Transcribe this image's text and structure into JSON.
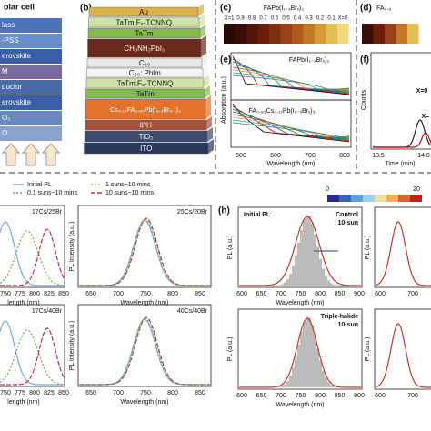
{
  "panel_a": {
    "title": "olar cell",
    "layers": [
      "lass",
      "-PSS",
      "erovskite",
      "M",
      "ductor",
      "erovskite",
      "O₂",
      "O"
    ]
  },
  "panel_b": {
    "label": "(b)",
    "layers": [
      "Au",
      "TaTm:F₆-TCNNQ",
      "TaTm",
      "CH₃NH₃PbI₃",
      "C₆₀",
      "C₆₀: Phlm",
      "TaTm:F₆-TCNNQ",
      "TaTm",
      "Cs₀.₁₅FA₀.₈₅Pb(I₀.₃Br₀.₇)₃",
      "IPH",
      "TiO₂",
      "ITO"
    ]
  },
  "panel_c": {
    "label": "(c)",
    "title": "FAPb(I₁₋ₓBrₓ)₃",
    "x_labels": [
      "X=1",
      "0.9",
      "0.8",
      "0.7",
      "0.6",
      "0.5",
      "0.4",
      "0.3",
      "0.2",
      "0.1",
      "X=0"
    ]
  },
  "panel_d": {
    "label": "(d)",
    "title": "FA₀.₈"
  },
  "panel_e": {
    "label": "(e)",
    "top_title": "FAPb(I₁₋ₓBrₓ)₃",
    "bottom_title": "FA₀.₈₃Cs₀.₁₇Pb(I₁₋ₓBrₓ)₃",
    "y_label": "Absorption (a.u.)",
    "x_label": "Wavelength (nm)",
    "x_ticks": [
      "500",
      "600",
      "700",
      "800"
    ]
  },
  "panel_f": {
    "label": "(f)",
    "y_label": "Counts",
    "x_label": "Time (min)",
    "x_ticks": [
      "13.5",
      "14.0"
    ],
    "annotations": [
      "X=0",
      "X="
    ]
  },
  "panel_g": {
    "legend": [
      "Initial PL",
      "1 suns~10 mins",
      "0.1 suns~10 mins",
      "10 suns~10 mins"
    ],
    "left_titles": [
      "17Cs/25Br",
      "17Cs/40Br"
    ],
    "right_titles": [
      "25Cs/20Br",
      "40Cs/40Br"
    ],
    "left_x_ticks": [
      "750",
      "775",
      "800",
      "825",
      "850"
    ],
    "right_x_ticks": [
      "650",
      "700",
      "750",
      "800",
      "850"
    ],
    "y_label": "PL Intensity (a.u.)",
    "x_label": "Wavelength (nm)",
    "x_label_cut": "length (nm)"
  },
  "panel_h": {
    "label": "(h)",
    "colorbar_ticks": [
      "0",
      "20"
    ],
    "initial": "Initial PL",
    "control": [
      "Control",
      "10-sun"
    ],
    "triple": [
      "Triple-halide",
      "10-sun"
    ],
    "y_label": "PL (a.u.)",
    "x_label": "Wavelength (nm)",
    "x_ticks": [
      "600",
      "650",
      "700",
      "750",
      "800",
      "850",
      "900"
    ],
    "x_ticks_cut": [
      "600",
      "700"
    ]
  }
}
